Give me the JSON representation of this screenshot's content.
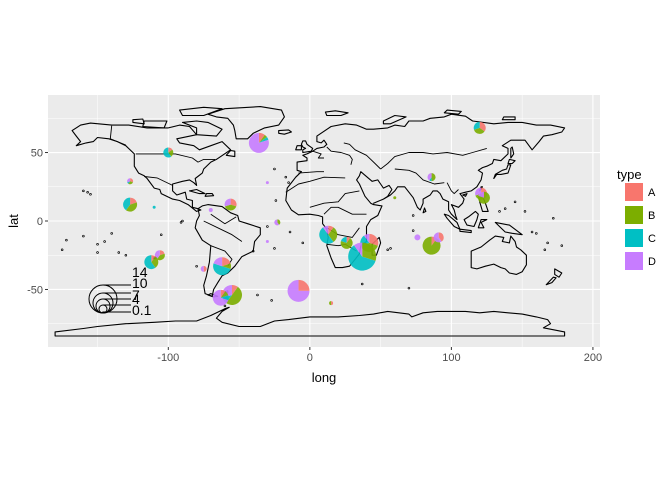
{
  "chart_data": {
    "type": "scatter",
    "subtype": "map-pie-scatter",
    "xlabel": "long",
    "ylabel": "lat",
    "xlim": [
      -185,
      205
    ],
    "ylim": [
      -92,
      92
    ],
    "x_ticks": [
      -100,
      0,
      100,
      200
    ],
    "y_ticks": [
      -50,
      0,
      50
    ],
    "grid": true,
    "legend": {
      "title": "type",
      "position": "right",
      "entries": [
        {
          "label": "A",
          "color": "#F8766D"
        },
        {
          "label": "B",
          "color": "#7CAE00"
        },
        {
          "label": "C",
          "color": "#00BFC4"
        },
        {
          "label": "D",
          "color": "#C77CFF"
        }
      ]
    },
    "radius_scale": {
      "labels": [
        "14",
        "10",
        "7",
        "4",
        "0.1"
      ],
      "values": [
        14,
        10,
        7,
        4,
        0.1
      ]
    },
    "pies": [
      {
        "long": -36,
        "lat": 57,
        "r": 10,
        "values": [
          0.1,
          0.05,
          0.05,
          0.8
        ]
      },
      {
        "long": 120,
        "lat": 68,
        "r": 6,
        "values": [
          0.35,
          0.35,
          0.3,
          0.0
        ]
      },
      {
        "long": -100,
        "lat": 50,
        "r": 5,
        "values": [
          0.15,
          0.25,
          0.6,
          0.0
        ]
      },
      {
        "long": -127,
        "lat": 29,
        "r": 3,
        "values": [
          0.3,
          0.3,
          0.1,
          0.3
        ]
      },
      {
        "long": -127,
        "lat": 12,
        "r": 7,
        "values": [
          0.2,
          0.4,
          0.4,
          0.0
        ]
      },
      {
        "long": -56,
        "lat": 12,
        "r": 6,
        "values": [
          0.3,
          0.4,
          0.0,
          0.3
        ]
      },
      {
        "long": -23,
        "lat": -1,
        "r": 3,
        "values": [
          0.0,
          0.4,
          0.0,
          0.6
        ]
      },
      {
        "long": 86,
        "lat": 32,
        "r": 4,
        "values": [
          0.0,
          0.5,
          0.1,
          0.4
        ]
      },
      {
        "long": 121,
        "lat": 20,
        "r": 6,
        "values": [
          0.4,
          0.3,
          0.0,
          0.3
        ]
      },
      {
        "long": 123,
        "lat": 17,
        "r": 6,
        "values": [
          0.0,
          0.8,
          0.0,
          0.2
        ]
      },
      {
        "long": -106,
        "lat": -25,
        "r": 5,
        "values": [
          0.2,
          0.4,
          0.0,
          0.4
        ]
      },
      {
        "long": -112,
        "lat": -30,
        "r": 7,
        "values": [
          0.1,
          0.3,
          0.6,
          0.0
        ]
      },
      {
        "long": -62,
        "lat": -33,
        "r": 9,
        "values": [
          0.2,
          0.1,
          0.5,
          0.2
        ]
      },
      {
        "long": -55,
        "lat": -54,
        "r": 10,
        "values": [
          0.1,
          0.5,
          0.1,
          0.3
        ]
      },
      {
        "long": -63,
        "lat": -56,
        "r": 8,
        "values": [
          0.1,
          0.1,
          0.1,
          0.7
        ]
      },
      {
        "long": -75,
        "lat": -35,
        "r": 3,
        "values": [
          0.5,
          0.0,
          0.0,
          0.5
        ]
      },
      {
        "long": 13,
        "lat": -10,
        "r": 9,
        "values": [
          0.1,
          0.3,
          0.5,
          0.1
        ]
      },
      {
        "long": 26,
        "lat": -16,
        "r": 6,
        "values": [
          0.1,
          0.7,
          0.2,
          0.0
        ]
      },
      {
        "long": 42,
        "lat": -16,
        "r": 9,
        "values": [
          0.3,
          0.4,
          0.2,
          0.1
        ]
      },
      {
        "long": 37,
        "lat": -26,
        "r": 14,
        "values": [
          0.0,
          0.3,
          0.6,
          0.1
        ]
      },
      {
        "long": 86,
        "lat": -18,
        "r": 9,
        "values": [
          0.1,
          0.9,
          0.0,
          0.0
        ]
      },
      {
        "long": 91,
        "lat": -12,
        "r": 5,
        "values": [
          0.4,
          0.0,
          0.0,
          0.6
        ]
      },
      {
        "long": 76,
        "lat": -12,
        "r": 3,
        "values": [
          0.0,
          0.0,
          0.0,
          1.0
        ]
      },
      {
        "long": -8,
        "lat": -51,
        "r": 11,
        "values": [
          0.25,
          0.0,
          0.0,
          0.75
        ]
      },
      {
        "long": 15,
        "lat": -60,
        "r": 2,
        "values": [
          0.5,
          0.5,
          0.0,
          0.0
        ]
      },
      {
        "long": -70,
        "lat": 8,
        "r": 2,
        "values": [
          0.0,
          0.0,
          0.0,
          1.0
        ]
      },
      {
        "long": -110,
        "lat": 10,
        "r": 1.5,
        "values": [
          0.0,
          0.0,
          1.0,
          0.0
        ]
      },
      {
        "long": -30,
        "lat": 28,
        "r": 1.5,
        "values": [
          0.0,
          0.0,
          0.0,
          1.0
        ]
      },
      {
        "long": 60,
        "lat": 17,
        "r": 1.5,
        "values": [
          0.0,
          1.0,
          0.0,
          0.0
        ]
      },
      {
        "long": -30,
        "lat": -15,
        "r": 1.5,
        "values": [
          0.0,
          0.0,
          0.0,
          1.0
        ]
      }
    ]
  }
}
